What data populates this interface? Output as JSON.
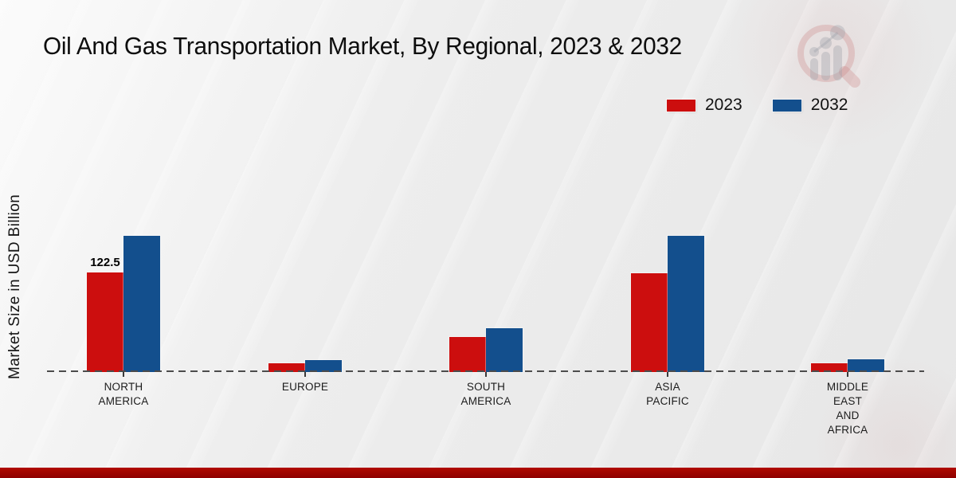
{
  "page": {
    "title": "Oil And Gas Transportation Market, By Regional, 2023 & 2032",
    "y_axis_label": "Market Size in USD Billion"
  },
  "legend": [
    {
      "label": "2023",
      "color": "#cc0e0e"
    },
    {
      "label": "2032",
      "color": "#134f8d"
    }
  ],
  "chart_data": {
    "type": "bar",
    "title": "Oil And Gas Transportation Market, By Regional, 2023 & 2032",
    "xlabel": "",
    "ylabel": "Market Size in USD Billion",
    "categories": [
      "NORTH AMERICA",
      "EUROPE",
      "SOUTH AMERICA",
      "ASIA PACIFIC",
      "MIDDLE EAST AND AFRICA"
    ],
    "category_label_lines": [
      [
        "NORTH",
        "AMERICA"
      ],
      [
        "EUROPE"
      ],
      [
        "SOUTH",
        "AMERICA"
      ],
      [
        "ASIA",
        "PACIFIC"
      ],
      [
        "MIDDLE",
        "EAST",
        "AND",
        "AFRICA"
      ]
    ],
    "series": [
      {
        "name": "2023",
        "color": "#cc0e0e",
        "values": [
          122.5,
          11,
          43,
          121.5,
          11
        ]
      },
      {
        "name": "2032",
        "color": "#134f8d",
        "values": [
          168,
          15,
          54,
          168,
          16
        ]
      }
    ],
    "data_labels": [
      {
        "series": "2023",
        "category": "NORTH AMERICA",
        "text": "122.5"
      }
    ],
    "ylim": [
      0,
      180
    ],
    "grid": false,
    "axis_line_style": "dashed-baseline",
    "legend_position": "top-right"
  },
  "footer": {
    "accent_color": "#b00a00"
  },
  "icons": {
    "logo": "market-research-future-watermark-logo"
  }
}
